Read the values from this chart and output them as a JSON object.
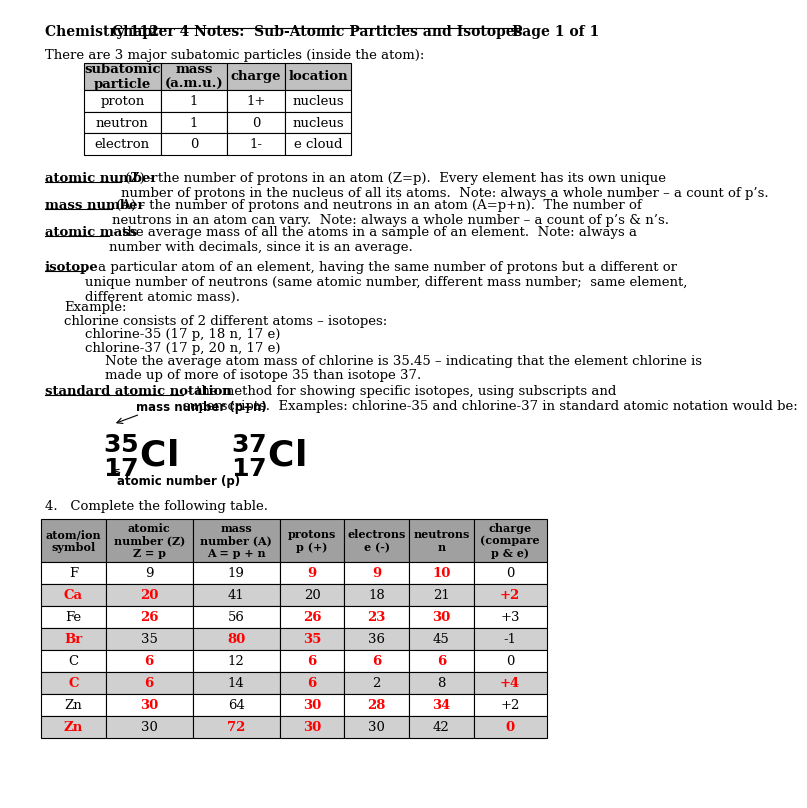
{
  "page_bg": "#ffffff",
  "header_left": "Chemistry 112",
  "header_center": "Chapter 4 Notes:  Sub-Atomic Particles and Isotopes",
  "header_right": "Page 1 of 1",
  "intro_text": "There are 3 major subatomic particles (inside the atom):",
  "subatomic_headers": [
    "subatomic\nparticle",
    "mass\n(a.m.u.)",
    "charge",
    "location"
  ],
  "subatomic_rows": [
    [
      "proton",
      "1",
      "1+",
      "nucleus"
    ],
    [
      "neutron",
      "1",
      "0",
      "nucleus"
    ],
    [
      "electron",
      "0",
      "1-",
      "e cloud"
    ]
  ],
  "subatomic_header_bg": "#c0c0c0",
  "def_atomic_number_term": "atomic number",
  "def_atomic_number_rest": " (Z) - the number of protons in an atom (Z=p).  Every element has its own unique\nnumber of protons in the nucleus of all its atoms.  Note: always a whole number – a count of p’s.",
  "def_mass_number_term": "mass number",
  "def_mass_number_rest": " (A) - the number of protons and neutrons in an atom (A=p+n).  The number of\nneutrons in an atom can vary.  Note: always a whole number – a count of p’s & n’s.",
  "def_atomic_mass_term": "atomic mass",
  "def_atomic_mass_rest": " - the average mass of all the atoms in a sample of an element.  Note: always a\nnumber with decimals, since it is an average.",
  "def_isotope_term": "isotope",
  "def_isotope_rest": " - a particular atom of an element, having the same number of protons but a different or\nunique number of neutrons (same atomic number, different mass number;  same element,\ndifferent atomic mass).",
  "example_lines": [
    "Example:",
    "chlorine consists of 2 different atoms – isotopes:",
    "chlorine-35 (17 p, 18 n, 17 e)",
    "chlorine-37 (17 p, 20 n, 17 e)",
    "Note the average atom mass of chlorine is 35.45 – indicating that the element chlorine is",
    "made up of more of isotope 35 than isotope 37."
  ],
  "def_san_term": "standard atomic notation",
  "def_san_rest": " - the method for showing specific isotopes, using subscripts and\nsuperscripts.  Examples: chlorine-35 and chlorine-37 in standard atomic notation would be:",
  "mass_label": "mass number (p+n)",
  "atomic_label": "atomic number (p)",
  "question4": "4.   Complete the following table.",
  "big_headers": [
    "atom/ion\nsymbol",
    "atomic\nnumber (Z)\nZ = p",
    "mass\nnumber (A)\nA = p + n",
    "protons\np (+)",
    "electrons\ne (-)",
    "neutrons\nn",
    "charge\n(compare\np & e)"
  ],
  "big_header_bg": "#a0a0a0",
  "big_rows": [
    {
      "cells": [
        "F",
        "9",
        "19",
        "9",
        "9",
        "10",
        "0"
      ],
      "colors": [
        "black",
        "black",
        "black",
        "red",
        "red",
        "red",
        "black"
      ],
      "bg": "#ffffff"
    },
    {
      "cells": [
        "Ca",
        "20",
        "41",
        "20",
        "18",
        "21",
        "+2"
      ],
      "colors": [
        "red",
        "red",
        "black",
        "black",
        "black",
        "black",
        "red"
      ],
      "bg": "#d0d0d0"
    },
    {
      "cells": [
        "Fe",
        "26",
        "56",
        "26",
        "23",
        "30",
        "+3"
      ],
      "colors": [
        "black",
        "red",
        "black",
        "red",
        "red",
        "red",
        "black"
      ],
      "bg": "#ffffff"
    },
    {
      "cells": [
        "Br",
        "35",
        "80",
        "35",
        "36",
        "45",
        "-1"
      ],
      "colors": [
        "red",
        "black",
        "red",
        "red",
        "black",
        "black",
        "black"
      ],
      "bg": "#d0d0d0"
    },
    {
      "cells": [
        "C",
        "6",
        "12",
        "6",
        "6",
        "6",
        "0"
      ],
      "colors": [
        "black",
        "red",
        "black",
        "red",
        "red",
        "red",
        "black"
      ],
      "bg": "#ffffff"
    },
    {
      "cells": [
        "C",
        "6",
        "14",
        "6",
        "2",
        "8",
        "+4"
      ],
      "colors": [
        "red",
        "red",
        "black",
        "red",
        "black",
        "black",
        "red"
      ],
      "bg": "#d0d0d0"
    },
    {
      "cells": [
        "Zn",
        "30",
        "64",
        "30",
        "28",
        "34",
        "+2"
      ],
      "colors": [
        "black",
        "red",
        "black",
        "red",
        "red",
        "red",
        "black"
      ],
      "bg": "#ffffff"
    },
    {
      "cells": [
        "Zn",
        "30",
        "72",
        "30",
        "30",
        "42",
        "0"
      ],
      "colors": [
        "red",
        "black",
        "red",
        "red",
        "black",
        "black",
        "red"
      ],
      "bg": "#d0d0d0"
    }
  ]
}
